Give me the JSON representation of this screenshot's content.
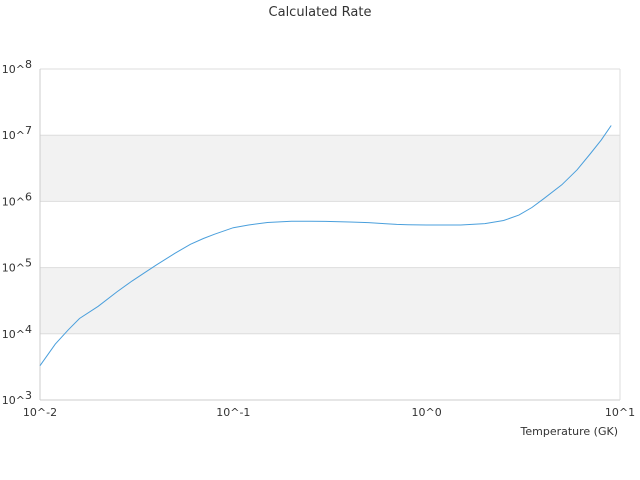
{
  "chart_data": {
    "type": "line",
    "title": "Calculated Rate",
    "xlabel": "Temperature (GK)",
    "ylabel": "",
    "x_scale": "log",
    "y_scale": "log",
    "xlim": [
      0.01,
      10
    ],
    "ylim": [
      1000,
      100000000
    ],
    "x_ticks": [
      {
        "value": 0.01,
        "label": "10^-2"
      },
      {
        "value": 0.1,
        "label": "10^-1"
      },
      {
        "value": 1,
        "label": "10^0"
      },
      {
        "value": 10,
        "label": "10^1"
      }
    ],
    "y_ticks": [
      {
        "value": 1000,
        "label": "10^3"
      },
      {
        "value": 10000,
        "label": "10^4"
      },
      {
        "value": 100000,
        "label": "10^5"
      },
      {
        "value": 1000000,
        "label": "10^6"
      },
      {
        "value": 10000000,
        "label": "10^7"
      },
      {
        "value": 100000000,
        "label": "10^8"
      }
    ],
    "grid": "alternating horizontal bands",
    "legend": "none",
    "colors": {
      "line": "#4a9fdc",
      "band": "#f2f2f2",
      "gridline": "#dddddd",
      "axis": "#cccccc"
    },
    "series": [
      {
        "x": [
          0.01,
          0.012,
          0.014,
          0.016,
          0.02,
          0.025,
          0.03,
          0.035,
          0.04,
          0.05,
          0.06,
          0.07,
          0.08,
          0.1,
          0.12,
          0.15,
          0.2,
          0.25,
          0.3,
          0.4,
          0.5,
          0.6,
          0.7,
          0.8,
          1.0,
          1.2,
          1.5,
          2.0,
          2.5,
          3.0,
          3.5,
          4.0,
          5.0,
          6.0,
          7.0,
          8.0,
          9.0
        ],
        "y": [
          3300,
          7000,
          11500,
          17000,
          26000,
          43000,
          63000,
          85000,
          110000,
          165000,
          225000,
          275000,
          320000,
          400000,
          440000,
          480000,
          500000,
          500000,
          498000,
          488000,
          478000,
          462000,
          450000,
          445000,
          440000,
          440000,
          440000,
          462000,
          515000,
          620000,
          810000,
          1080000,
          1780000,
          3000000,
          5200000,
          8500000,
          14000000
        ]
      }
    ]
  }
}
